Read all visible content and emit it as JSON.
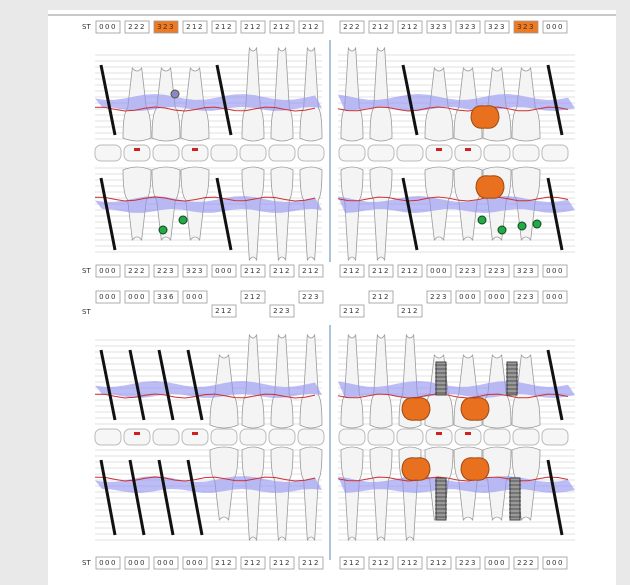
{
  "rows": [
    {
      "label": "ST",
      "boxes": [
        "000",
        "222",
        "323",
        "212",
        "212",
        "212",
        "212",
        "212",
        "222",
        "212",
        "212",
        "323",
        "323",
        "323",
        "323",
        "000"
      ]
    },
    {
      "label": "ST",
      "boxes": [
        "000",
        "222",
        "223",
        "323",
        "000",
        "212",
        "212",
        "212",
        "212",
        "212",
        "212",
        "000",
        "223",
        "223",
        "323",
        "000"
      ]
    },
    {
      "label": "ST",
      "boxes": [
        "000",
        "000",
        "336",
        "000",
        "212",
        "212",
        "223",
        "223",
        "212",
        "212",
        "212",
        "223",
        "000",
        "000",
        "223",
        "000"
      ]
    },
    {
      "label": "ST",
      "boxes": [
        "000",
        "000",
        "000",
        "000",
        "212",
        "212",
        "212",
        "212",
        "212",
        "212",
        "212",
        "212",
        "223",
        "000",
        "222",
        "000"
      ]
    }
  ]
}
